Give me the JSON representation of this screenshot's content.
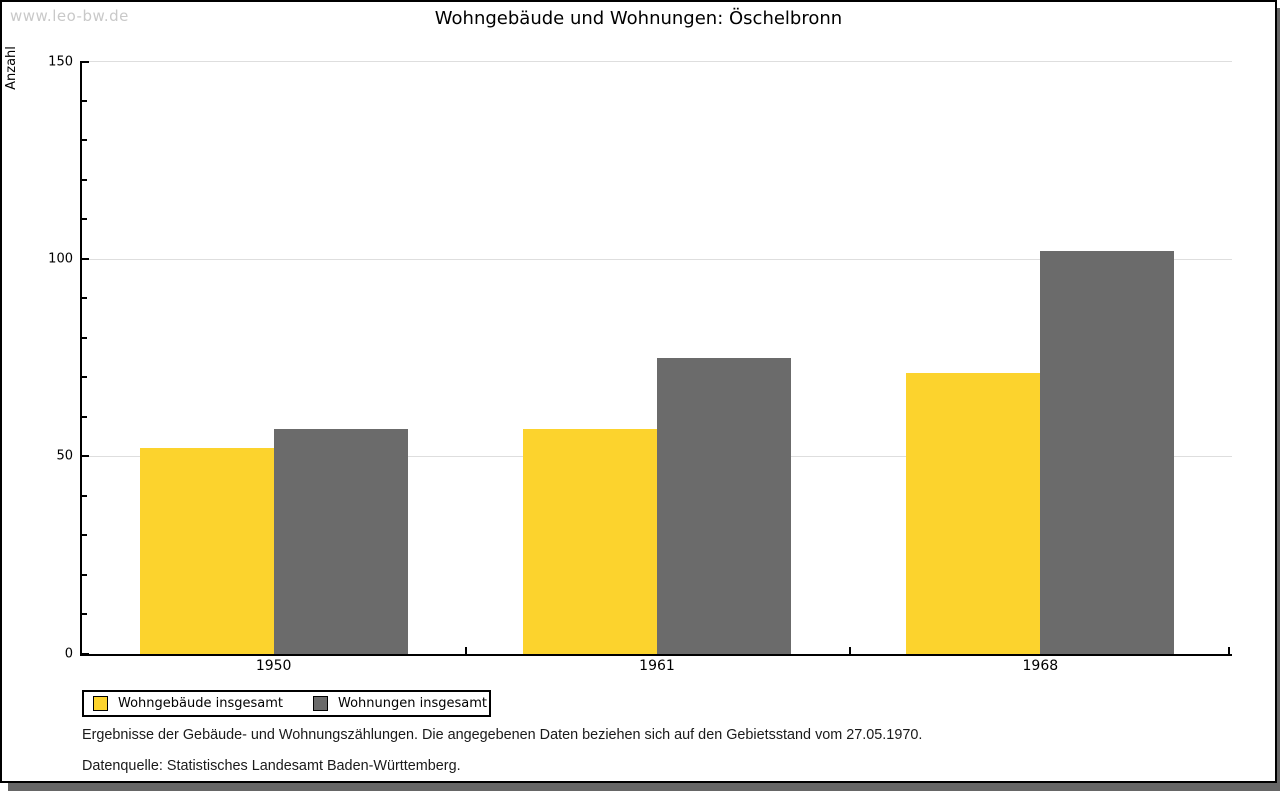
{
  "page": {
    "watermark": "www.leo-bw.de",
    "title": "Wohngebäude und Wohnungen: Öschelbronn"
  },
  "chart_data": {
    "type": "bar",
    "title": "Wohngebäude und Wohnungen: Öschelbronn",
    "xlabel": "",
    "ylabel": "Anzahl",
    "categories": [
      "1950",
      "1961",
      "1968"
    ],
    "series": [
      {
        "name": "Wohngebäude insgesamt",
        "color": "#fcd32d",
        "values": [
          52,
          57,
          71
        ]
      },
      {
        "name": "Wohnungen insgesamt",
        "color": "#6b6b6b",
        "values": [
          57,
          75,
          102
        ]
      }
    ],
    "ylim": [
      0,
      150
    ],
    "yticks_major": [
      0,
      50,
      100,
      150
    ],
    "ytick_minor_step": 10,
    "grid": "horizontal-major",
    "legend_position": "bottom-left"
  },
  "footnotes": {
    "line1": "Ergebnisse der Gebäude- und Wohnungszählungen. Die angegebenen Daten beziehen sich auf den Gebietsstand vom 27.05.1970.",
    "line2": "Datenquelle: Statistisches Landesamt Baden-Württemberg."
  },
  "colors": {
    "grid": "#dedede",
    "axis": "#000000",
    "shadow": "#666666",
    "watermark": "#c9c9c9"
  }
}
